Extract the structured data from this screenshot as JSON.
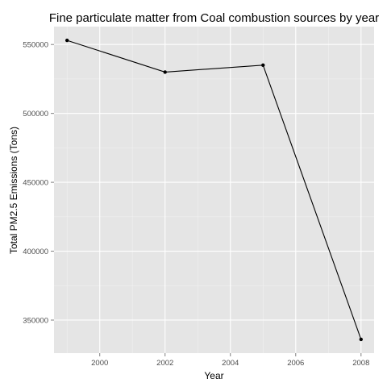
{
  "colors": {
    "panel_background": "#e5e5e5",
    "grid_major": "#ffffff",
    "grid_minor": "#f2f2f2",
    "line": "#000000",
    "point": "#000000",
    "tick_text": "#4d4d4d"
  },
  "chart_data": {
    "type": "line",
    "title": "Fine particulate matter from Coal combustion sources by year",
    "xlabel": "Year",
    "ylabel": "Total PM2.5 Emissions (Tons)",
    "grid": true,
    "x": [
      1999,
      2002,
      2005,
      2008
    ],
    "series": [
      {
        "values": [
          553000,
          530000,
          535000,
          336000
        ]
      }
    ],
    "xlim": [
      1998.6,
      2008.4
    ],
    "ylim": [
      326000,
      563000
    ],
    "xticks": [
      2000,
      2002,
      2004,
      2006,
      2008
    ],
    "xtick_labels": [
      "2000",
      "2002",
      "2004",
      "2006",
      "2008"
    ],
    "yticks": [
      350000,
      400000,
      450000,
      500000,
      550000
    ],
    "ytick_labels": [
      "350000",
      "400000",
      "450000",
      "500000",
      "550000"
    ]
  }
}
